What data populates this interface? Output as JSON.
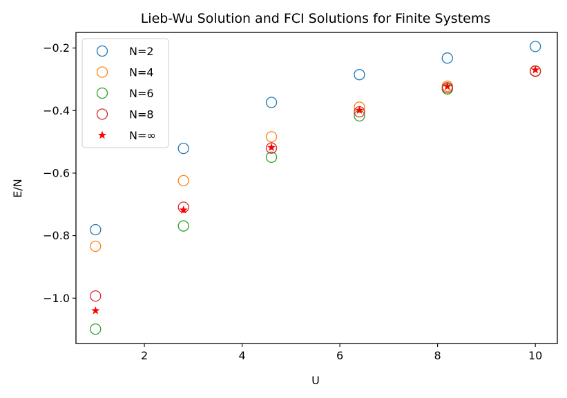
{
  "chart_data": {
    "type": "scatter",
    "title": "Lieb-Wu Solution and FCI Solutions for Finite Systems",
    "xlabel": "U",
    "ylabel": "E/N",
    "xlim": [
      0.6,
      10.45
    ],
    "ylim": [
      -1.145,
      -0.15
    ],
    "xticks": [
      2,
      4,
      6,
      8,
      10
    ],
    "xtick_labels": [
      "2",
      "4",
      "6",
      "8",
      "10"
    ],
    "yticks": [
      -1.0,
      -0.8,
      -0.6,
      -0.4,
      -0.2
    ],
    "ytick_labels": [
      "−1.0",
      "−0.8",
      "−0.6",
      "−0.4",
      "−0.2"
    ],
    "x": [
      1.0,
      2.8,
      4.6,
      6.4,
      8.2,
      10.0
    ],
    "grid": false,
    "legend_position": "top-left",
    "series": [
      {
        "name": "N=2",
        "marker": "circle-open",
        "color": "#1f77b4",
        "values": [
          -0.781,
          -0.521,
          -0.374,
          -0.285,
          -0.232,
          -0.195
        ]
      },
      {
        "name": "N=4",
        "marker": "circle-open",
        "color": "#ff7f0e",
        "values": [
          -0.834,
          -0.624,
          -0.484,
          -0.389,
          -0.322,
          -0.273
        ]
      },
      {
        "name": "N=6",
        "marker": "circle-open",
        "color": "#2ca02c",
        "values": [
          -1.099,
          -0.769,
          -0.549,
          -0.417,
          -0.331,
          -0.274
        ]
      },
      {
        "name": "N=8",
        "marker": "circle-open",
        "color": "#d62728",
        "values": [
          -0.993,
          -0.709,
          -0.52,
          -0.404,
          -0.327,
          -0.274
        ]
      },
      {
        "name": "N=∞",
        "marker": "star",
        "color": "#ff0000",
        "values": [
          -1.04,
          -0.718,
          -0.518,
          -0.399,
          -0.323,
          -0.27
        ]
      }
    ]
  }
}
